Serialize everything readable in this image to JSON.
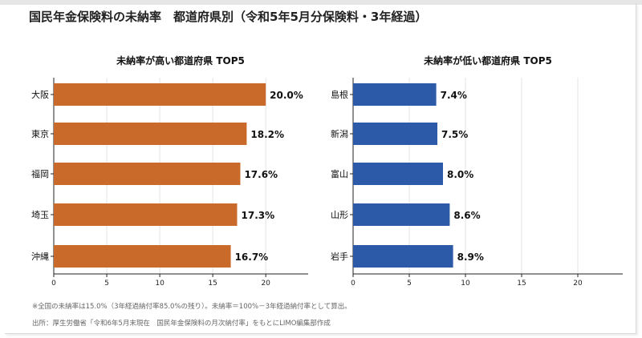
{
  "title": "国民年金保険料の未納率　都道府県別（令和5年5月分保険料・3年経過）",
  "colors": {
    "high": "#c96a2b",
    "low": "#2c5aa8",
    "grid": "#e3e3e3",
    "axis": "#222222"
  },
  "chart_data": [
    {
      "type": "bar",
      "orientation": "horizontal",
      "title": "未納率が高い都道府県 TOP5",
      "categories": [
        "大阪",
        "東京",
        "福岡",
        "埼玉",
        "沖縄"
      ],
      "values": [
        20.0,
        18.2,
        17.6,
        17.3,
        16.7
      ],
      "value_labels": [
        "20.0%",
        "18.2%",
        "17.6%",
        "17.3%",
        "16.7%"
      ],
      "xlim": [
        0,
        24
      ],
      "xticks": [
        0,
        5,
        10,
        15,
        20
      ],
      "grid": true,
      "color": "#c96a2b"
    },
    {
      "type": "bar",
      "orientation": "horizontal",
      "title": "未納率が低い都道府県 TOP5",
      "categories": [
        "島根",
        "新潟",
        "富山",
        "山形",
        "岩手"
      ],
      "values": [
        7.4,
        7.5,
        8.0,
        8.6,
        8.9
      ],
      "value_labels": [
        "7.4%",
        "7.5%",
        "8.0%",
        "8.6%",
        "8.9%"
      ],
      "xlim": [
        0,
        24
      ],
      "xticks": [
        0,
        5,
        10,
        15,
        20
      ],
      "grid": true,
      "color": "#2c5aa8"
    }
  ],
  "footnotes": {
    "note1": "※全国の未納率は15.0%（3年経過納付率85.0%の残り）。未納率＝100%－3年経過納付率として算出。",
    "note2": "出所：厚生労働省「令和6年5月末現在　国民年金保険料の月次納付率」をもとにLIMO編集部作成"
  }
}
